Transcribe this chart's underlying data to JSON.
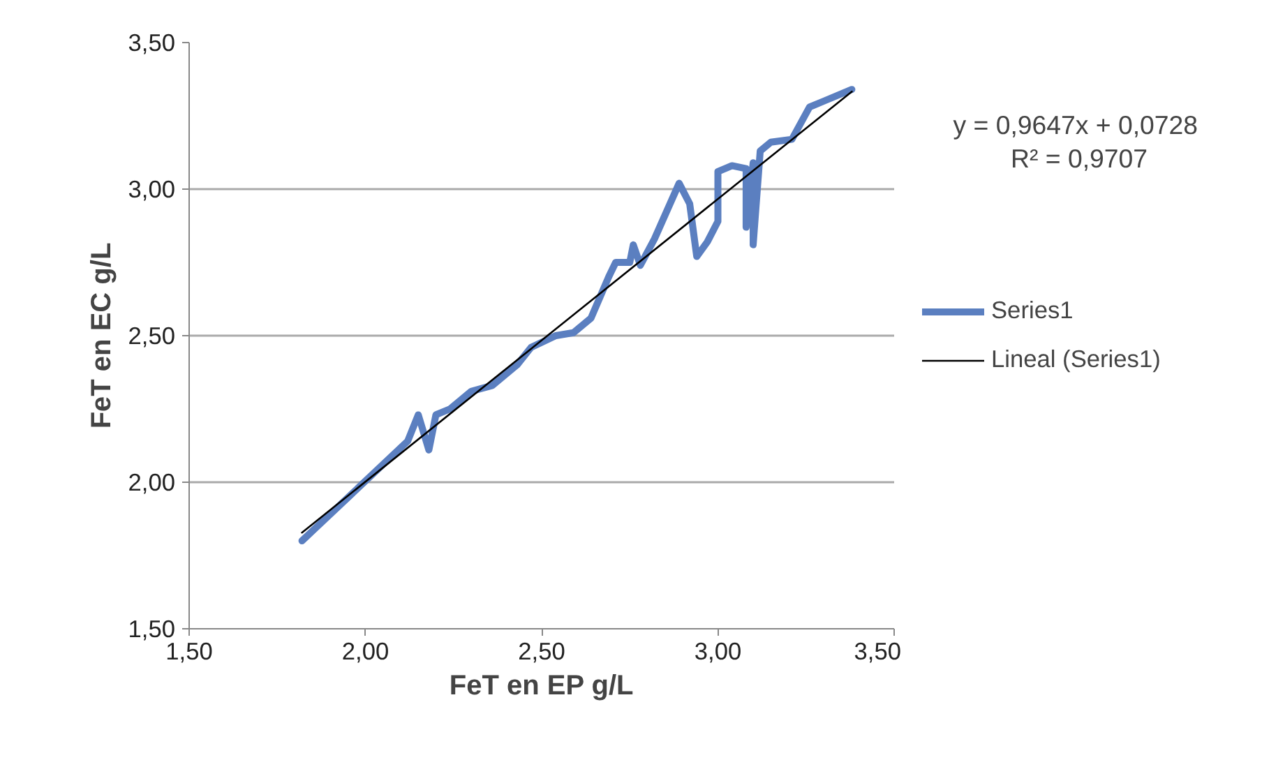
{
  "chart_data": {
    "type": "line",
    "xlabel": "FeT en EP g/L",
    "ylabel": "FeT en EC g/L",
    "xlim": [
      1.5,
      3.5
    ],
    "ylim": [
      1.5,
      3.5
    ],
    "xticks": [
      {
        "value": 1.5,
        "label": "1,50"
      },
      {
        "value": 2.0,
        "label": "2,00"
      },
      {
        "value": 2.5,
        "label": "2,50"
      },
      {
        "value": 3.0,
        "label": "3,00"
      },
      {
        "value": 3.5,
        "label": "3,50"
      }
    ],
    "yticks": [
      {
        "value": 1.5,
        "label": "1,50"
      },
      {
        "value": 2.0,
        "label": "2,00"
      },
      {
        "value": 2.5,
        "label": "2,50"
      },
      {
        "value": 3.0,
        "label": "3,00"
      },
      {
        "value": 3.5,
        "label": "3,50"
      }
    ],
    "grid": "y",
    "legend": "right",
    "marker": "none",
    "series": [
      {
        "name": "Series1",
        "color": "#5b7fc0",
        "x": [
          1.82,
          2.12,
          2.15,
          2.18,
          2.2,
          2.24,
          2.3,
          2.36,
          2.43,
          2.47,
          2.54,
          2.59,
          2.64,
          2.69,
          2.71,
          2.75,
          2.76,
          2.78,
          2.82,
          2.89,
          2.92,
          2.94,
          2.97,
          3.0,
          3.0,
          3.04,
          3.08,
          3.08,
          3.1,
          3.1,
          3.12,
          3.15,
          3.21,
          3.26,
          3.3,
          3.38
        ],
        "values": [
          1.8,
          2.14,
          2.23,
          2.11,
          2.23,
          2.25,
          2.31,
          2.33,
          2.4,
          2.46,
          2.5,
          2.51,
          2.56,
          2.7,
          2.75,
          2.75,
          2.81,
          2.74,
          2.83,
          3.02,
          2.95,
          2.77,
          2.82,
          2.89,
          3.06,
          3.08,
          3.07,
          2.87,
          3.09,
          2.81,
          3.13,
          3.16,
          3.17,
          3.28,
          3.3,
          3.34
        ]
      },
      {
        "name": "Lineal (Series1)",
        "color": "#000000",
        "type": "line",
        "x": [
          1.82,
          3.38
        ],
        "values": [
          1.828,
          3.333
        ]
      }
    ],
    "annotations": [
      "y = 0,9647x  + 0,0728",
      "R² = 0,9707"
    ]
  }
}
